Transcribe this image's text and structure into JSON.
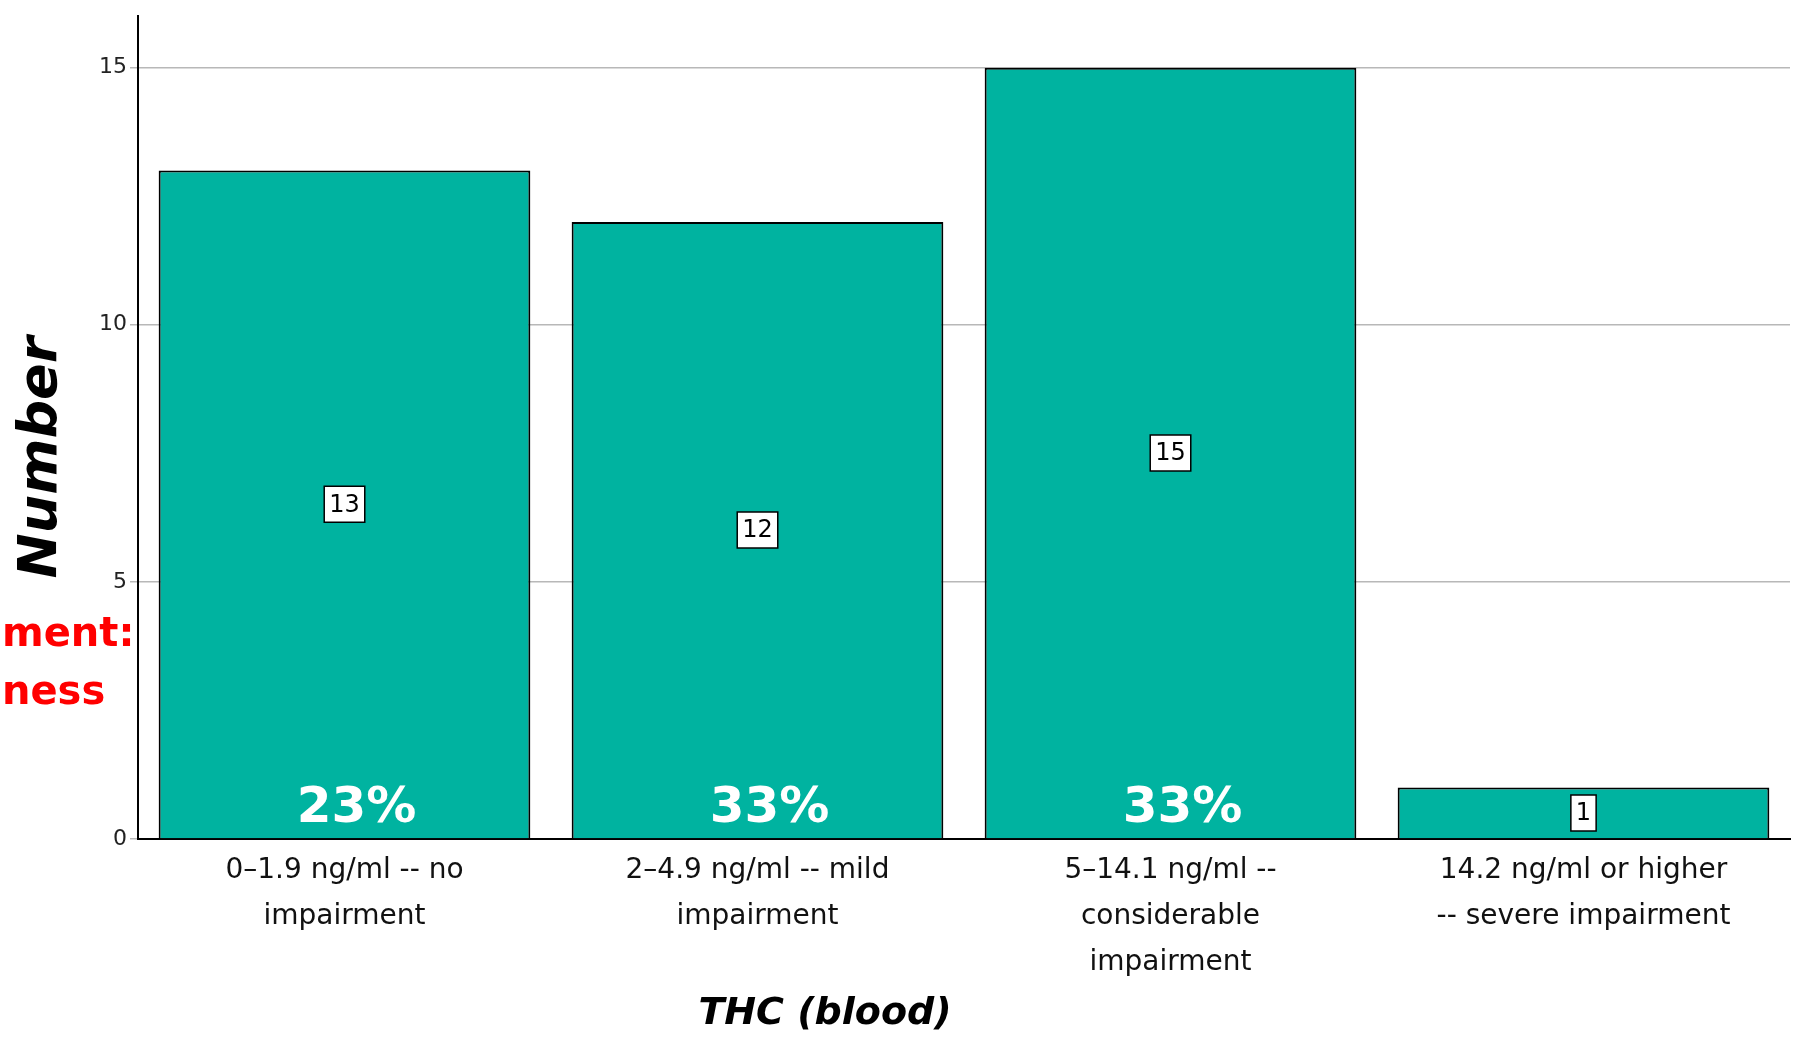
{
  "chart_data": {
    "type": "bar",
    "xlabel": "THC (blood)",
    "ylabel": "Number",
    "categories": [
      "0–1.9 ng/ml -- no impairment",
      "2–4.9 ng/ml -- mild impairment",
      "5–14.1 ng/ml -- considerable impairment",
      "14.2 ng/ml or higher -- severe impairment"
    ],
    "values": [
      13,
      12,
      15,
      1
    ],
    "color": "#00b3a0",
    "ylim": [
      0,
      16
    ],
    "yticks": [
      0,
      5,
      10,
      15
    ],
    "grid": "y",
    "data_labels": true,
    "annotations": [
      "ment:",
      "ness",
      "23%",
      "33%",
      "33%"
    ]
  }
}
